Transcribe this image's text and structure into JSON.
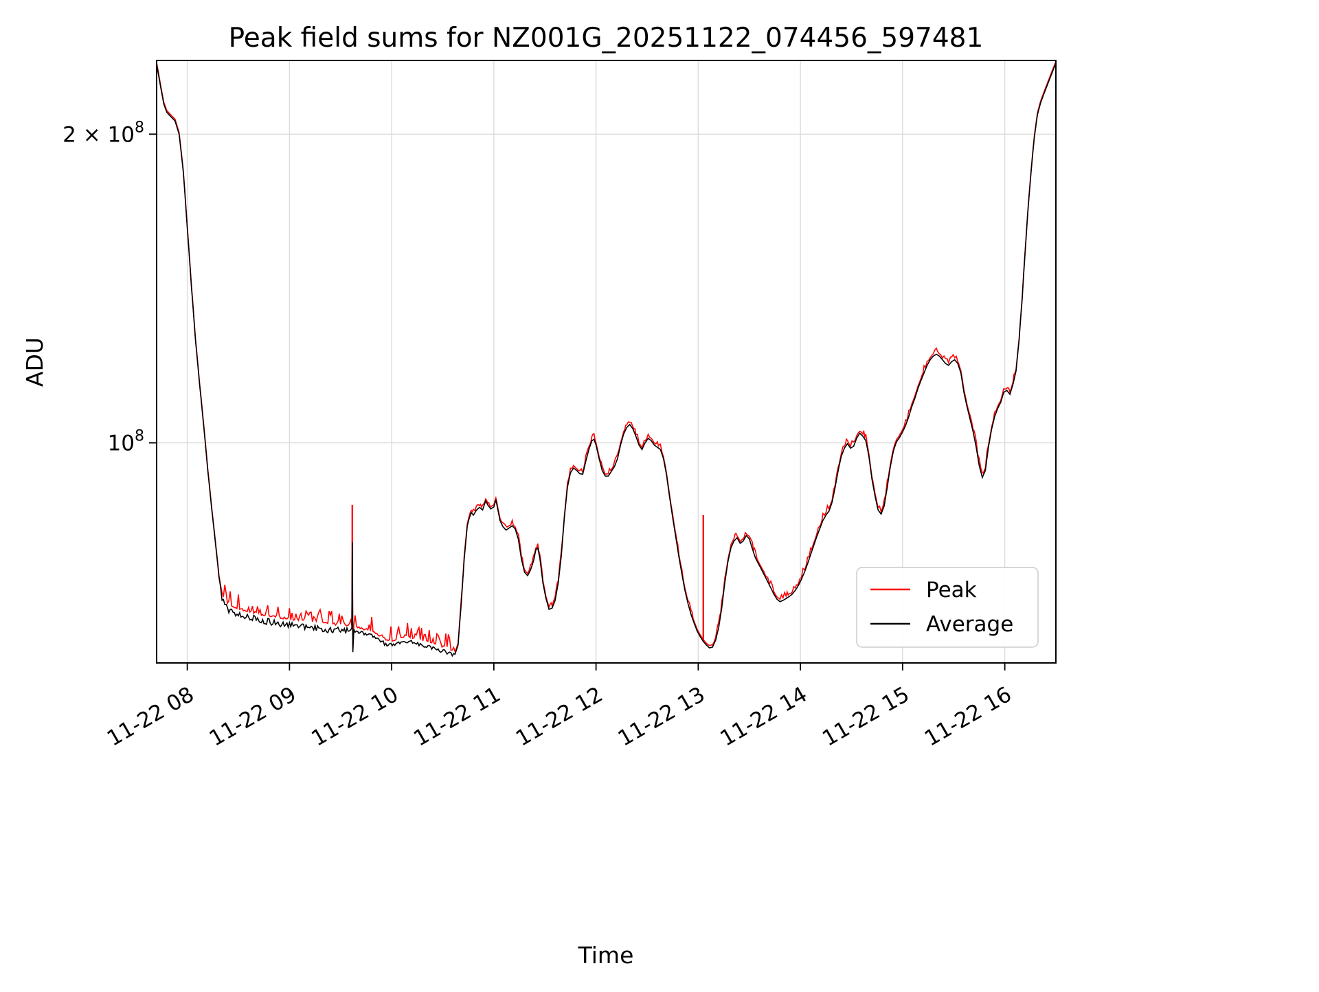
{
  "figure": {
    "title": "Peak field sums for NZ001G_20251122_074456_597481",
    "xlabel": "Time",
    "ylabel": "ADU"
  },
  "legend": {
    "entries": [
      {
        "label": "Peak",
        "color": "#ff0000"
      },
      {
        "label": "Average",
        "color": "#000000"
      }
    ]
  },
  "colors": {
    "peak": "#ff0000",
    "average": "#000000",
    "grid": "#dcdcdc",
    "axis": "#000000",
    "background": "#ffffff"
  },
  "chart_data": {
    "type": "line",
    "title": "Peak field sums for NZ001G_20251122_074456_597481",
    "xlabel": "Time",
    "ylabel": "ADU",
    "y_scale": "log",
    "grid": true,
    "legend_position": "lower right",
    "ylim": [
      61000000,
      236000000
    ],
    "xlim_hours": [
      7.7,
      16.5
    ],
    "value_scale": 10000000,
    "value_unit": "ADU (values below are in units of 1e7)",
    "x_ticks": [
      {
        "hour": 8,
        "label": "11-22 08"
      },
      {
        "hour": 9,
        "label": "11-22 09"
      },
      {
        "hour": 10,
        "label": "11-22 10"
      },
      {
        "hour": 11,
        "label": "11-22 11"
      },
      {
        "hour": 12,
        "label": "11-22 12"
      },
      {
        "hour": 13,
        "label": "11-22 13"
      },
      {
        "hour": 14,
        "label": "11-22 14"
      },
      {
        "hour": 15,
        "label": "11-22 15"
      },
      {
        "hour": 16,
        "label": "11-22 16"
      }
    ],
    "y_ticks": [
      {
        "value": 200000000,
        "base": "2 × 10",
        "exp": "8"
      },
      {
        "value": 100000000,
        "base": "10",
        "exp": "8"
      }
    ],
    "series": [
      {
        "name": "Peak",
        "color": "#ff0000",
        "note": "equals Average plus small positive noise plus spikes listed in peak_spikes"
      },
      {
        "name": "Average",
        "color": "#000000",
        "note": "points in average_points as [hour, value_1e7]"
      }
    ],
    "average_points": [
      [
        7.7,
        23.4
      ],
      [
        7.74,
        22.2
      ],
      [
        7.77,
        21.4
      ],
      [
        7.8,
        21.0
      ],
      [
        7.84,
        20.8
      ],
      [
        7.88,
        20.6
      ],
      [
        7.92,
        20.0
      ],
      [
        7.96,
        18.4
      ],
      [
        8.0,
        16.2
      ],
      [
        8.04,
        14.2
      ],
      [
        8.08,
        12.6
      ],
      [
        8.12,
        11.4
      ],
      [
        8.16,
        10.4
      ],
      [
        8.2,
        9.4
      ],
      [
        8.24,
        8.6
      ],
      [
        8.28,
        7.9
      ],
      [
        8.31,
        7.4
      ],
      [
        8.34,
        7.08
      ],
      [
        8.38,
        6.96
      ],
      [
        8.42,
        6.9
      ],
      [
        8.46,
        6.87
      ],
      [
        8.5,
        6.85
      ],
      [
        8.55,
        6.83
      ],
      [
        8.6,
        6.81
      ],
      [
        8.65,
        6.79
      ],
      [
        8.7,
        6.77
      ],
      [
        8.75,
        6.75
      ],
      [
        8.8,
        6.74
      ],
      [
        8.85,
        6.72
      ],
      [
        8.9,
        6.71
      ],
      [
        8.95,
        6.7
      ],
      [
        9.0,
        6.69
      ],
      [
        9.05,
        6.68
      ],
      [
        9.1,
        6.67
      ],
      [
        9.15,
        6.66
      ],
      [
        9.2,
        6.65
      ],
      [
        9.25,
        6.64
      ],
      [
        9.3,
        6.63
      ],
      [
        9.35,
        6.62
      ],
      [
        9.4,
        6.62
      ],
      [
        9.45,
        6.61
      ],
      [
        9.5,
        6.61
      ],
      [
        9.55,
        6.6
      ],
      [
        9.6,
        6.6
      ],
      [
        9.61,
        6.6
      ],
      [
        9.615,
        8.0
      ],
      [
        9.62,
        6.25
      ],
      [
        9.63,
        6.58
      ],
      [
        9.68,
        6.56
      ],
      [
        9.73,
        6.54
      ],
      [
        9.78,
        6.52
      ],
      [
        9.83,
        6.5
      ],
      [
        9.88,
        6.45
      ],
      [
        9.93,
        6.4
      ],
      [
        9.98,
        6.37
      ],
      [
        10.03,
        6.39
      ],
      [
        10.08,
        6.42
      ],
      [
        10.13,
        6.44
      ],
      [
        10.18,
        6.43
      ],
      [
        10.23,
        6.41
      ],
      [
        10.28,
        6.39
      ],
      [
        10.33,
        6.37
      ],
      [
        10.38,
        6.34
      ],
      [
        10.43,
        6.32
      ],
      [
        10.48,
        6.3
      ],
      [
        10.53,
        6.28
      ],
      [
        10.58,
        6.25
      ],
      [
        10.62,
        6.22
      ],
      [
        10.65,
        6.35
      ],
      [
        10.68,
        6.95
      ],
      [
        10.71,
        7.7
      ],
      [
        10.74,
        8.3
      ],
      [
        10.76,
        8.45
      ],
      [
        10.78,
        8.55
      ],
      [
        10.8,
        8.5
      ],
      [
        10.83,
        8.6
      ],
      [
        10.86,
        8.65
      ],
      [
        10.89,
        8.6
      ],
      [
        10.92,
        8.78
      ],
      [
        10.94,
        8.7
      ],
      [
        10.97,
        8.62
      ],
      [
        11.0,
        8.66
      ],
      [
        11.02,
        8.8
      ],
      [
        11.04,
        8.6
      ],
      [
        11.06,
        8.4
      ],
      [
        11.09,
        8.28
      ],
      [
        11.12,
        8.22
      ],
      [
        11.15,
        8.26
      ],
      [
        11.18,
        8.3
      ],
      [
        11.21,
        8.24
      ],
      [
        11.24,
        8.05
      ],
      [
        11.27,
        7.7
      ],
      [
        11.3,
        7.48
      ],
      [
        11.33,
        7.42
      ],
      [
        11.36,
        7.52
      ],
      [
        11.39,
        7.68
      ],
      [
        11.41,
        7.86
      ],
      [
        11.43,
        7.9
      ],
      [
        11.45,
        7.72
      ],
      [
        11.48,
        7.3
      ],
      [
        11.51,
        7.05
      ],
      [
        11.54,
        6.88
      ],
      [
        11.57,
        6.9
      ],
      [
        11.6,
        7.02
      ],
      [
        11.63,
        7.3
      ],
      [
        11.66,
        7.75
      ],
      [
        11.69,
        8.45
      ],
      [
        11.72,
        9.05
      ],
      [
        11.75,
        9.35
      ],
      [
        11.78,
        9.45
      ],
      [
        11.81,
        9.4
      ],
      [
        11.84,
        9.33
      ],
      [
        11.87,
        9.32
      ],
      [
        11.9,
        9.6
      ],
      [
        11.93,
        9.85
      ],
      [
        11.96,
        10.05
      ],
      [
        11.98,
        10.08
      ],
      [
        12.0,
        9.95
      ],
      [
        12.03,
        9.65
      ],
      [
        12.06,
        9.4
      ],
      [
        12.09,
        9.28
      ],
      [
        12.12,
        9.28
      ],
      [
        12.15,
        9.38
      ],
      [
        12.18,
        9.48
      ],
      [
        12.21,
        9.65
      ],
      [
        12.24,
        9.95
      ],
      [
        12.27,
        10.2
      ],
      [
        12.3,
        10.35
      ],
      [
        12.33,
        10.42
      ],
      [
        12.36,
        10.32
      ],
      [
        12.39,
        10.15
      ],
      [
        12.42,
        9.95
      ],
      [
        12.45,
        9.85
      ],
      [
        12.48,
        10.0
      ],
      [
        12.51,
        10.1
      ],
      [
        12.54,
        10.05
      ],
      [
        12.57,
        9.95
      ],
      [
        12.6,
        9.9
      ],
      [
        12.63,
        9.85
      ],
      [
        12.66,
        9.65
      ],
      [
        12.69,
        9.3
      ],
      [
        12.72,
        8.85
      ],
      [
        12.75,
        8.45
      ],
      [
        12.78,
        8.1
      ],
      [
        12.81,
        7.75
      ],
      [
        12.84,
        7.45
      ],
      [
        12.87,
        7.18
      ],
      [
        12.9,
        6.97
      ],
      [
        12.93,
        6.8
      ],
      [
        12.96,
        6.67
      ],
      [
        12.99,
        6.55
      ],
      [
        13.02,
        6.47
      ],
      [
        13.05,
        6.4
      ],
      [
        13.08,
        6.35
      ],
      [
        13.11,
        6.31
      ],
      [
        13.14,
        6.32
      ],
      [
        13.17,
        6.42
      ],
      [
        13.2,
        6.6
      ],
      [
        13.23,
        6.9
      ],
      [
        13.26,
        7.3
      ],
      [
        13.29,
        7.65
      ],
      [
        13.32,
        7.9
      ],
      [
        13.35,
        8.02
      ],
      [
        13.38,
        8.08
      ],
      [
        13.41,
        7.98
      ],
      [
        13.44,
        8.02
      ],
      [
        13.47,
        8.12
      ],
      [
        13.5,
        8.06
      ],
      [
        13.53,
        7.88
      ],
      [
        13.56,
        7.72
      ],
      [
        13.59,
        7.62
      ],
      [
        13.62,
        7.52
      ],
      [
        13.65,
        7.42
      ],
      [
        13.68,
        7.32
      ],
      [
        13.71,
        7.22
      ],
      [
        13.74,
        7.12
      ],
      [
        13.77,
        7.04
      ],
      [
        13.8,
        7.0
      ],
      [
        13.83,
        7.02
      ],
      [
        13.86,
        7.05
      ],
      [
        13.89,
        7.08
      ],
      [
        13.92,
        7.12
      ],
      [
        13.95,
        7.18
      ],
      [
        13.98,
        7.26
      ],
      [
        14.01,
        7.36
      ],
      [
        14.04,
        7.48
      ],
      [
        14.07,
        7.62
      ],
      [
        14.1,
        7.78
      ],
      [
        14.13,
        7.94
      ],
      [
        14.16,
        8.1
      ],
      [
        14.19,
        8.25
      ],
      [
        14.22,
        8.4
      ],
      [
        14.25,
        8.5
      ],
      [
        14.28,
        8.58
      ],
      [
        14.31,
        8.75
      ],
      [
        14.34,
        9.05
      ],
      [
        14.37,
        9.4
      ],
      [
        14.4,
        9.7
      ],
      [
        14.43,
        9.88
      ],
      [
        14.46,
        9.98
      ],
      [
        14.49,
        9.88
      ],
      [
        14.52,
        9.92
      ],
      [
        14.55,
        10.1
      ],
      [
        14.58,
        10.22
      ],
      [
        14.61,
        10.15
      ],
      [
        14.64,
        10.05
      ],
      [
        14.67,
        9.7
      ],
      [
        14.7,
        9.22
      ],
      [
        14.73,
        8.88
      ],
      [
        14.76,
        8.6
      ],
      [
        14.79,
        8.52
      ],
      [
        14.82,
        8.68
      ],
      [
        14.85,
        9.05
      ],
      [
        14.88,
        9.48
      ],
      [
        14.91,
        9.82
      ],
      [
        14.94,
        10.02
      ],
      [
        14.97,
        10.12
      ],
      [
        15.0,
        10.25
      ],
      [
        15.03,
        10.4
      ],
      [
        15.06,
        10.6
      ],
      [
        15.09,
        10.85
      ],
      [
        15.12,
        11.05
      ],
      [
        15.15,
        11.3
      ],
      [
        15.18,
        11.5
      ],
      [
        15.21,
        11.7
      ],
      [
        15.24,
        11.9
      ],
      [
        15.27,
        12.05
      ],
      [
        15.3,
        12.15
      ],
      [
        15.33,
        12.2
      ],
      [
        15.36,
        12.15
      ],
      [
        15.39,
        12.05
      ],
      [
        15.42,
        11.95
      ],
      [
        15.45,
        11.9
      ],
      [
        15.48,
        12.0
      ],
      [
        15.51,
        12.05
      ],
      [
        15.54,
        11.95
      ],
      [
        15.57,
        11.7
      ],
      [
        15.6,
        11.2
      ],
      [
        15.63,
        10.85
      ],
      [
        15.66,
        10.55
      ],
      [
        15.69,
        10.25
      ],
      [
        15.72,
        9.9
      ],
      [
        15.75,
        9.5
      ],
      [
        15.78,
        9.25
      ],
      [
        15.81,
        9.4
      ],
      [
        15.84,
        9.9
      ],
      [
        15.87,
        10.3
      ],
      [
        15.9,
        10.6
      ],
      [
        15.93,
        10.8
      ],
      [
        15.96,
        10.95
      ],
      [
        15.99,
        11.2
      ],
      [
        16.02,
        11.25
      ],
      [
        16.05,
        11.15
      ],
      [
        16.08,
        11.4
      ],
      [
        16.11,
        11.75
      ],
      [
        16.14,
        12.6
      ],
      [
        16.17,
        13.8
      ],
      [
        16.2,
        15.4
      ],
      [
        16.23,
        17.0
      ],
      [
        16.26,
        18.5
      ],
      [
        16.29,
        19.9
      ],
      [
        16.32,
        20.9
      ],
      [
        16.35,
        21.45
      ],
      [
        16.38,
        21.85
      ],
      [
        16.41,
        22.25
      ],
      [
        16.44,
        22.65
      ],
      [
        16.47,
        23.05
      ],
      [
        16.5,
        23.45
      ]
    ],
    "peak_spikes": [
      {
        "t": 9.615,
        "from": 6.6,
        "to": 8.7
      },
      {
        "t": 13.05,
        "from": 6.4,
        "to": 8.5
      }
    ],
    "noise": {
      "peak_base": 0.004,
      "average": [
        {
          "from": 8.34,
          "to": 9.605,
          "amp": 0.014
        },
        {
          "from": 9.63,
          "to": 10.6,
          "amp": 0.009
        }
      ],
      "peak": [
        {
          "from": 8.34,
          "to": 10.62,
          "amp": 0.035
        },
        {
          "from": 10.66,
          "to": 12.95,
          "amp": 0.01
        },
        {
          "from": 13.1,
          "to": 16.1,
          "amp": 0.013
        }
      ]
    }
  }
}
